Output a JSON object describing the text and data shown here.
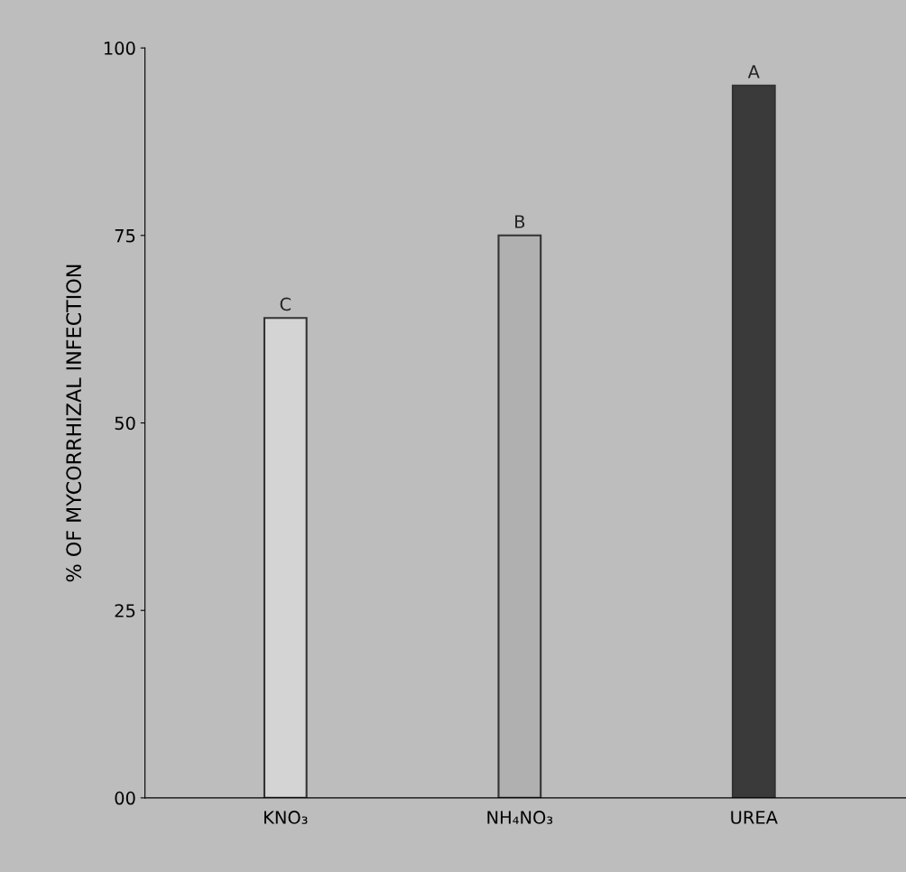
{
  "chart_data": {
    "type": "bar",
    "ylabel": "% OF MYCORRHIZAL INFECTION",
    "categories": [
      "KNO₃",
      "NH₄NO₃",
      "UREA"
    ],
    "values": [
      64,
      75,
      95
    ],
    "value_labels": [
      "C",
      "B",
      "A"
    ],
    "colors": [
      "#d4d4d4",
      "#b0b0b0",
      "#3a3a3a"
    ],
    "ylim": [
      0,
      100
    ],
    "yticks": [
      {
        "value": 0,
        "label": "00"
      },
      25,
      50,
      75,
      100
    ],
    "grid": false,
    "legend": false
  }
}
